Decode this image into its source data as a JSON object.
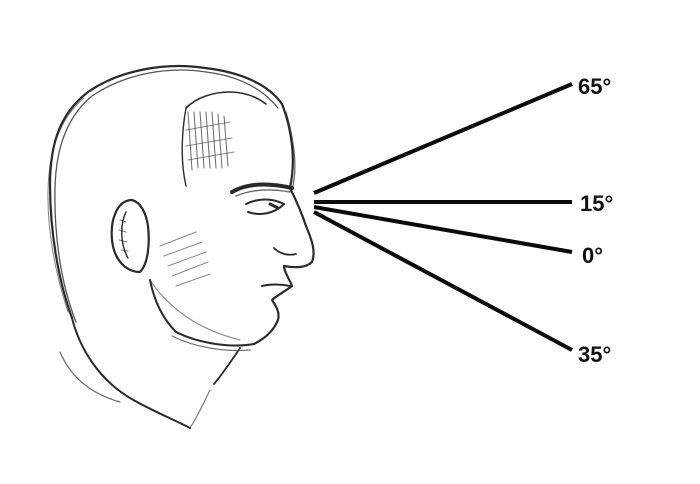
{
  "angles": [
    {
      "label": "65°",
      "value": 65
    },
    {
      "label": "15°",
      "value": 15
    },
    {
      "label": "0°",
      "value": 0
    },
    {
      "label": "35°",
      "value": 35
    }
  ],
  "colors": {
    "ink": "#111111",
    "pencil": "#2a2a2a",
    "paper": "#ffffff"
  }
}
